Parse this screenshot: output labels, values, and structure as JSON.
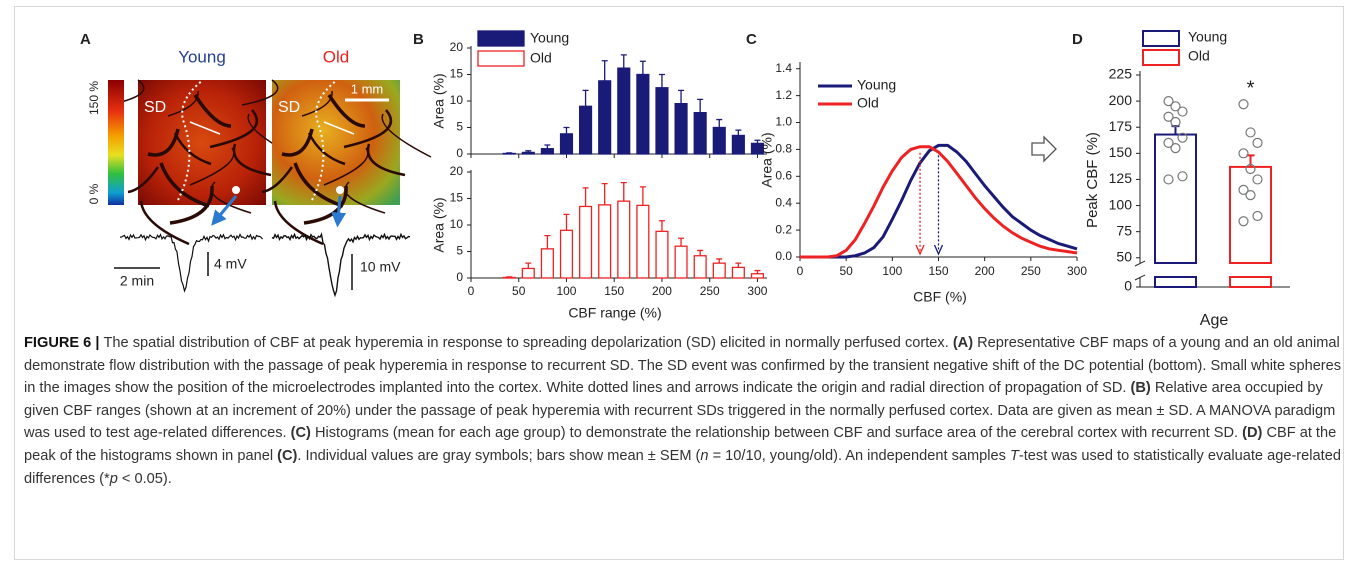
{
  "panel_a": {
    "panel_label": "A",
    "groups": [
      {
        "title": "Young",
        "color": "#233f8f"
      },
      {
        "title": "Old",
        "color": "#e8241f"
      }
    ],
    "colorbar_labels": [
      "150 %",
      "0 %"
    ],
    "map_labels": [
      "SD",
      "SD"
    ],
    "scale_bar": "1 mm",
    "trace_scales": [
      "2 min",
      "4 mV",
      "10 mV"
    ]
  },
  "chart_data": [
    {
      "type": "bar",
      "panel_label": "B",
      "xlabel": "CBF range (%)",
      "ylabel": "Area (%)",
      "x": [
        40,
        60,
        80,
        100,
        120,
        140,
        160,
        180,
        200,
        220,
        240,
        260,
        280,
        300
      ],
      "xlim": [
        0,
        310
      ],
      "xticks": [
        0,
        50,
        100,
        150,
        200,
        250,
        300
      ],
      "ylim": [
        0,
        20
      ],
      "yticks": [
        0,
        5,
        10,
        15,
        20
      ],
      "series": [
        {
          "name": "Young",
          "color": "#1a1a78",
          "filled": true,
          "values": [
            0.1,
            0.3,
            1,
            3.8,
            9,
            13.8,
            16.2,
            15,
            12.5,
            9.5,
            7.8,
            5,
            3.5,
            2
          ],
          "errors": [
            0.1,
            0.3,
            0.7,
            1.2,
            3,
            3.8,
            2.5,
            2.5,
            2.5,
            2.5,
            2.5,
            1.5,
            1,
            0.6
          ]
        },
        {
          "name": "Old",
          "color": "#ee2222",
          "filled": false,
          "values": [
            0.1,
            1.8,
            5.5,
            9,
            13.5,
            13.8,
            14.5,
            13.7,
            8.8,
            6,
            4.2,
            2.8,
            2,
            0.8
          ],
          "errors": [
            0.1,
            1,
            2.5,
            3,
            3.5,
            4,
            3.5,
            3.5,
            2,
            1.5,
            1,
            0.8,
            0.8,
            0.6
          ]
        }
      ]
    },
    {
      "type": "line",
      "panel_label": "C",
      "xlabel": "CBF (%)",
      "ylabel": "Area (%)",
      "x": [
        0,
        10,
        20,
        30,
        40,
        50,
        60,
        70,
        80,
        90,
        100,
        110,
        120,
        130,
        140,
        150,
        160,
        170,
        180,
        190,
        200,
        210,
        220,
        230,
        240,
        250,
        260,
        270,
        280,
        290,
        300
      ],
      "xlim": [
        0,
        300
      ],
      "xticks": [
        0,
        50,
        100,
        150,
        200,
        250,
        300
      ],
      "ylim": [
        0,
        1.45
      ],
      "yticks": [
        {
          "value": 0,
          "label": "0.0"
        },
        0.2,
        0.4,
        0.6,
        0.8,
        {
          "value": 1,
          "label": "1.0"
        },
        1.2,
        1.4
      ],
      "series": [
        {
          "name": "Young",
          "color": "#1a1a78",
          "values": [
            0,
            0,
            0,
            0,
            0,
            0,
            0.01,
            0.03,
            0.07,
            0.15,
            0.28,
            0.42,
            0.57,
            0.7,
            0.79,
            0.83,
            0.83,
            0.78,
            0.71,
            0.62,
            0.53,
            0.45,
            0.37,
            0.3,
            0.25,
            0.2,
            0.16,
            0.13,
            0.1,
            0.08,
            0.06
          ]
        },
        {
          "name": "Old",
          "color": "#ee2222",
          "values": [
            0,
            0,
            0,
            0,
            0.01,
            0.05,
            0.13,
            0.25,
            0.38,
            0.52,
            0.64,
            0.74,
            0.8,
            0.82,
            0.82,
            0.78,
            0.71,
            0.62,
            0.53,
            0.44,
            0.36,
            0.29,
            0.23,
            0.18,
            0.14,
            0.11,
            0.08,
            0.06,
            0.05,
            0.04,
            0.03
          ]
        }
      ]
    },
    {
      "type": "bar",
      "panel_label": "D",
      "xlabel": "Age",
      "ylabel": "Peak CBF (%)",
      "ylim": [
        0,
        225
      ],
      "yticks": [
        0,
        50,
        75,
        100,
        125,
        150,
        175,
        200,
        225
      ],
      "axis_break": [
        10,
        45
      ],
      "significance": "*",
      "series": [
        {
          "name": "Young",
          "color": "#1a1a78",
          "values": [
            168
          ],
          "errors": [
            8
          ],
          "points": [
            200,
            195,
            190,
            185,
            180,
            165,
            160,
            155,
            128,
            125
          ]
        },
        {
          "name": "Old",
          "color": "#ee2222",
          "values": [
            137
          ],
          "errors": [
            11
          ],
          "points": [
            197,
            170,
            160,
            150,
            135,
            125,
            115,
            110,
            90,
            85
          ]
        }
      ]
    }
  ],
  "caption": [
    {
      "text": "FIGURE 6 | ",
      "bold": true
    },
    {
      "text": "The spatial distribution of CBF at peak hyperemia in response to spreading depolarization (SD) elicited in normally perfused cortex. "
    },
    {
      "text": "(A)",
      "bold": true
    },
    {
      "text": " Representative CBF maps of a young and an old animal demonstrate flow distribution with the passage of peak hyperemia in response to recurrent SD. The SD event was confirmed by the transient negative shift of the DC potential (bottom). Small white spheres in the images show the position of the microelectrodes implanted into the cortex. White dotted lines and arrows indicate the origin and radial direction of propagation of SD. "
    },
    {
      "text": "(B)",
      "bold": true
    },
    {
      "text": " Relative area occupied by given CBF ranges (shown at an increment of 20%) under the passage of peak hyperemia with recurrent SDs triggered in the normally perfused cortex. Data are given as mean ± SD. A MANOVA paradigm was used to test age-related differences. "
    },
    {
      "text": "(C)",
      "bold": true
    },
    {
      "text": " Histograms (mean for each age group) to demonstrate the relationship between CBF and surface area of the cerebral cortex with recurrent SD. "
    },
    {
      "text": "(D)",
      "bold": true
    },
    {
      "text": " CBF at the peak of the histograms shown in panel "
    },
    {
      "text": "(C)",
      "bold": true
    },
    {
      "text": ". Individual values are gray symbols; bars show mean ± SEM ("
    },
    {
      "text": "n",
      "italic": true
    },
    {
      "text": " = 10/10, young/old). An independent samples "
    },
    {
      "text": "T",
      "italic": true
    },
    {
      "text": "-test was used to statistically evaluate age-related differences (*"
    },
    {
      "text": "p",
      "italic": true
    },
    {
      "text": " < 0.05)."
    }
  ]
}
